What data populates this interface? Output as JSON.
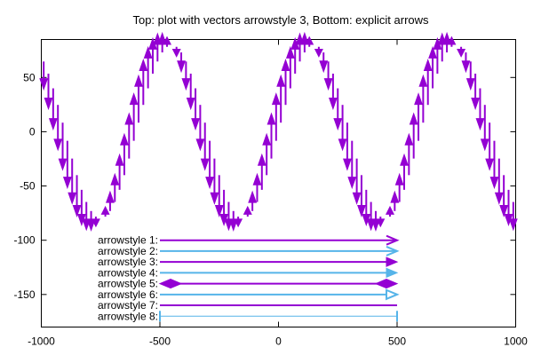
{
  "chart_data": {
    "type": "vectors",
    "title": "Top: plot with vectors arrowstyle 3, Bottom: explicit arrows",
    "xlabel": "",
    "ylabel": "",
    "xlim": [
      -1000,
      1000
    ],
    "ylim": [
      -180,
      85
    ],
    "xticks": [
      -1000,
      -500,
      0,
      500,
      1000
    ],
    "yticks": [
      50,
      0,
      -50,
      -100,
      -150
    ],
    "grid": false,
    "colors": {
      "purple": "#9400d3",
      "light_blue": "#56b4e9",
      "text": "#000000"
    },
    "sine_vectors": {
      "amplitude": 80,
      "period": 600,
      "x_start": -990,
      "x_step": 20,
      "count": 100,
      "arrowstyle": 3
    },
    "arrows": [
      {
        "label": "arrowstyle 1:",
        "x_from": -500,
        "x_to": 500,
        "y": -100,
        "head": "end",
        "style": "open",
        "color": "purple",
        "width": 2
      },
      {
        "label": "arrowstyle 2:",
        "x_from": -500,
        "x_to": 500,
        "y": -110,
        "head": "end",
        "style": "open",
        "color": "light_blue",
        "width": 2
      },
      {
        "label": "arrowstyle 3:",
        "x_from": -500,
        "x_to": 500,
        "y": -120,
        "head": "end",
        "style": "filled",
        "color": "purple",
        "width": 2
      },
      {
        "label": "arrowstyle 4:",
        "x_from": -500,
        "x_to": 500,
        "y": -130,
        "head": "end",
        "style": "filled",
        "color": "light_blue",
        "width": 2
      },
      {
        "label": "arrowstyle 5:",
        "x_from": -500,
        "x_to": 500,
        "y": -140,
        "head": "both",
        "style": "diamond",
        "color": "purple",
        "width": 2
      },
      {
        "label": "arrowstyle 6:",
        "x_from": -500,
        "x_to": 500,
        "y": -150,
        "head": "end",
        "style": "empty",
        "color": "light_blue",
        "width": 2
      },
      {
        "label": "arrowstyle 7:",
        "x_from": -500,
        "x_to": 500,
        "y": -160,
        "head": "none",
        "style": "none",
        "color": "purple",
        "width": 2
      },
      {
        "label": "arrowstyle 8:",
        "x_from": -500,
        "x_to": 500,
        "y": -170,
        "head": "both",
        "style": "bar",
        "color": "light_blue",
        "width": 1
      }
    ]
  }
}
